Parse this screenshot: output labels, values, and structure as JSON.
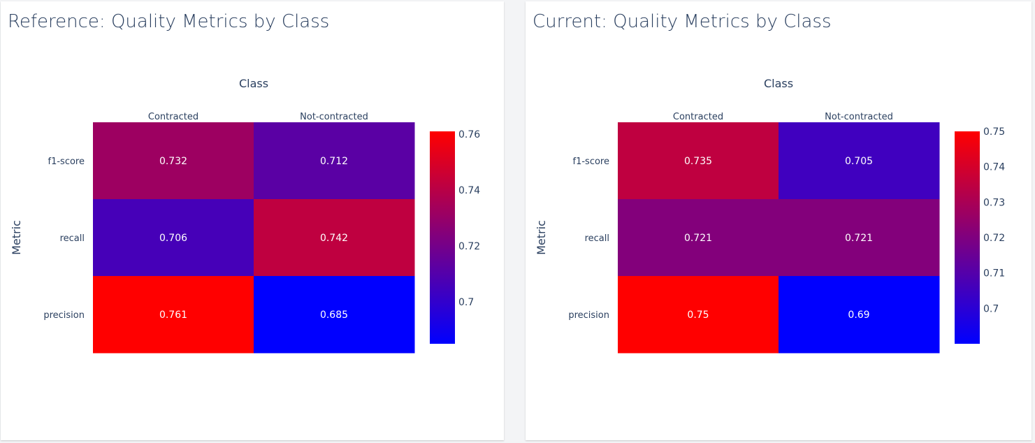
{
  "colorscale": {
    "low": "#0000ff",
    "mid": "#7f007f",
    "high": "#ff0000"
  },
  "chart_data": [
    {
      "type": "heatmap",
      "title": "Reference: Quality Metrics by Class",
      "xlabel": "Class",
      "ylabel": "Metric",
      "x": [
        "Contracted",
        "Not-contracted"
      ],
      "y": [
        "f1-score",
        "recall",
        "precision"
      ],
      "z": [
        [
          0.732,
          0.712
        ],
        [
          0.706,
          0.742
        ],
        [
          0.761,
          0.685
        ]
      ],
      "text": [
        [
          "0.732",
          "0.712"
        ],
        [
          "0.706",
          "0.742"
        ],
        [
          "0.761",
          "0.685"
        ]
      ],
      "zmin": 0.685,
      "zmax": 0.761,
      "colorbar_ticks": [
        0.7,
        0.72,
        0.74,
        0.76
      ],
      "colorbar_ticklabels": [
        "0.7",
        "0.72",
        "0.74",
        "0.76"
      ]
    },
    {
      "type": "heatmap",
      "title": "Current: Quality Metrics by Class",
      "xlabel": "Class",
      "ylabel": "Metric",
      "x": [
        "Contracted",
        "Not-contracted"
      ],
      "y": [
        "f1-score",
        "recall",
        "precision"
      ],
      "z": [
        [
          0.735,
          0.705
        ],
        [
          0.721,
          0.721
        ],
        [
          0.75,
          0.69
        ]
      ],
      "text": [
        [
          "0.735",
          "0.705"
        ],
        [
          "0.721",
          "0.721"
        ],
        [
          "0.75",
          "0.69"
        ]
      ],
      "zmin": 0.69,
      "zmax": 0.75,
      "colorbar_ticks": [
        0.7,
        0.71,
        0.72,
        0.73,
        0.74,
        0.75
      ],
      "colorbar_ticklabels": [
        "0.7",
        "0.71",
        "0.72",
        "0.73",
        "0.74",
        "0.75"
      ]
    }
  ]
}
